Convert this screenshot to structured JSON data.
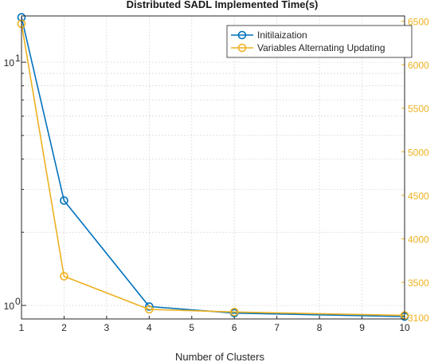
{
  "chart_data": {
    "type": "line",
    "title": "Distributed SADL Implemented Time(s)",
    "xlabel": "Number of Clusters",
    "ylabel_left": "",
    "ylabel_right": "",
    "x": [
      1,
      2,
      4,
      6,
      10
    ],
    "xlim": [
      1,
      10
    ],
    "xticks": [
      1,
      2,
      3,
      4,
      5,
      6,
      7,
      8,
      9,
      10
    ],
    "left_axis": {
      "scale": "log",
      "ylim": [
        0.88,
        15.5
      ],
      "major_ticks": [
        1,
        10
      ],
      "major_tick_labels": [
        "10",
        "10"
      ],
      "major_tick_exponents": [
        "0",
        "1"
      ],
      "minor_ticks": [
        2,
        3,
        4,
        5,
        6,
        7,
        8,
        9
      ]
    },
    "right_axis": {
      "scale": "linear",
      "ylim": [
        3080,
        6560
      ],
      "ticks": [
        3100,
        3500,
        4000,
        4500,
        5000,
        5500,
        6000,
        6500
      ],
      "color": "#EDB120"
    },
    "grid": true,
    "legend_position": "top-right",
    "series": [
      {
        "name": "Initilaization",
        "axis": "left",
        "color": "#0072BD",
        "values": [
          15.3,
          2.7,
          0.99,
          0.93,
          0.9
        ]
      },
      {
        "name": "Variables Alternating Updating",
        "axis": "right",
        "color": "#EDB120",
        "values": [
          6470,
          3570,
          3190,
          3160,
          3120
        ]
      }
    ]
  }
}
